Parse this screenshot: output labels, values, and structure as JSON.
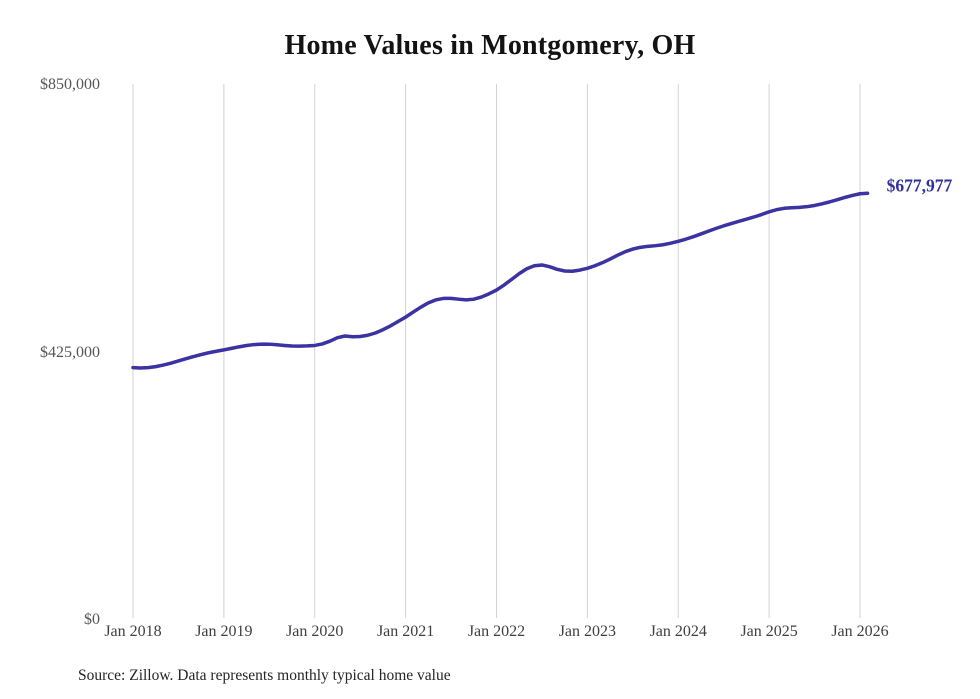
{
  "chart_data": {
    "type": "line",
    "title": "Home Values in Montgomery, OH",
    "source_note": "Source: Zillow. Data represents monthly typical home value",
    "end_label": "$677,977",
    "last_value": 677977,
    "ylim": [
      0,
      850000
    ],
    "grid": "vertical-only",
    "legend": "none",
    "y_ticks": [
      {
        "value": 850000,
        "label": "$850,000"
      },
      {
        "value": 425000,
        "label": "$425,000"
      },
      {
        "value": 0,
        "label": "$0"
      }
    ],
    "x_ticks": [
      "Jan 2018",
      "Jan 2019",
      "Jan 2020",
      "Jan 2021",
      "Jan 2022",
      "Jan 2023",
      "Jan 2024",
      "Jan 2025",
      "Jan 2026"
    ],
    "series_name": "Typical home value (monthly)",
    "x_start_month": "Jan 2018",
    "x_end_month": "Feb 2026",
    "values": [
      401000,
      400400,
      400900,
      402600,
      405100,
      408100,
      411600,
      415100,
      418600,
      421700,
      424600,
      427000,
      429200,
      431600,
      434000,
      436100,
      437600,
      438300,
      438200,
      437300,
      436200,
      435300,
      435100,
      435500,
      436200,
      438600,
      443000,
      448500,
      451200,
      450100,
      450400,
      452400,
      456000,
      461200,
      467300,
      474200,
      481200,
      489200,
      497000,
      503800,
      508700,
      510900,
      511000,
      509700,
      508700,
      509700,
      513100,
      518200,
      524200,
      532200,
      541200,
      550300,
      558100,
      562900,
      564100,
      561300,
      557200,
      554500,
      554100,
      555900,
      558800,
      562800,
      567700,
      573500,
      579600,
      585200,
      589300,
      592100,
      593700,
      594700,
      596200,
      598700,
      601700,
      605100,
      609000,
      613400,
      617900,
      622200,
      626200,
      629900,
      633400,
      636800,
      640300,
      644200,
      648500,
      652000,
      654100,
      654900,
      655500,
      656700,
      658600,
      661200,
      664300,
      667800,
      671300,
      674600,
      677200,
      677977
    ],
    "colors": {
      "line": "#3a33a1",
      "end_label": "#32329b",
      "gridline": "#d2d2d2",
      "background": "#ffffff"
    }
  }
}
